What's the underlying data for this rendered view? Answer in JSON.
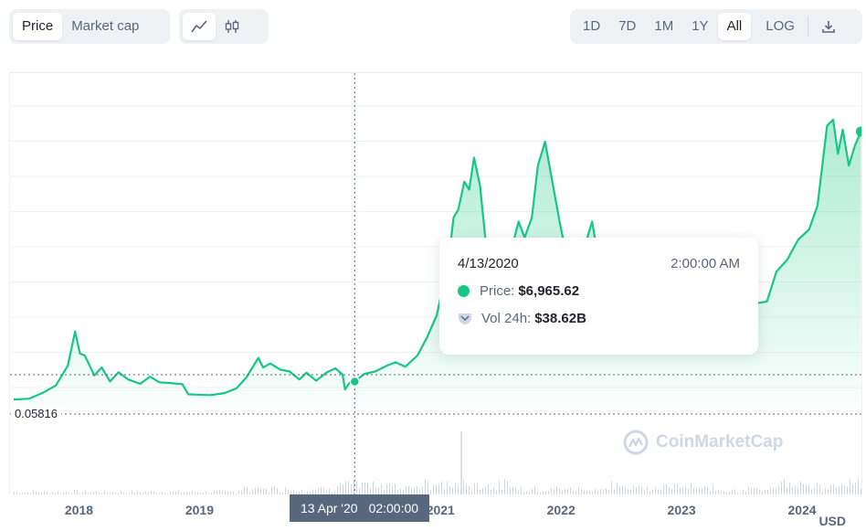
{
  "toolbar": {
    "tabs": [
      {
        "label": "Price",
        "active": true
      },
      {
        "label": "Market cap",
        "active": false
      }
    ],
    "chart_types": [
      {
        "icon": "line-chart-icon",
        "active": true
      },
      {
        "icon": "candlestick-icon",
        "active": false
      }
    ],
    "ranges": [
      {
        "label": "1D",
        "active": false
      },
      {
        "label": "7D",
        "active": false
      },
      {
        "label": "1M",
        "active": false
      },
      {
        "label": "1Y",
        "active": false
      },
      {
        "label": "All",
        "active": true
      }
    ],
    "log_label": "LOG",
    "download_icon": "download-icon"
  },
  "tooltip": {
    "date": "4/13/2020",
    "time": "2:00:00 AM",
    "price_label": "Price:",
    "price_value": "$6,965.62",
    "volume_label": "Vol 24h:",
    "volume_value": "$38.62B"
  },
  "hover_axis": {
    "date": "13 Apr '20",
    "time": "02:00:00"
  },
  "min_label": "0.05816",
  "currency": "USD",
  "watermark": "CoinMarketCap",
  "colors": {
    "line": "#16c784",
    "tooltip_bar": "#58667e"
  },
  "chart_data": {
    "type": "area",
    "title": "",
    "xlabel": "",
    "ylabel": "",
    "x_ticks": [
      "2018",
      "2019",
      "2020",
      "2021",
      "2022",
      "2023",
      "2024"
    ],
    "series": [
      {
        "values": [
          [
            2017.45,
            2500
          ],
          [
            2017.58,
            2700
          ],
          [
            2017.7,
            4300
          ],
          [
            2017.8,
            6000
          ],
          [
            2017.9,
            11000
          ],
          [
            2017.96,
            19500
          ],
          [
            2018.0,
            14000
          ],
          [
            2018.04,
            13500
          ],
          [
            2018.12,
            8500
          ],
          [
            2018.18,
            10500
          ],
          [
            2018.25,
            7000
          ],
          [
            2018.32,
            9300
          ],
          [
            2018.4,
            7500
          ],
          [
            2018.5,
            6400
          ],
          [
            2018.58,
            8200
          ],
          [
            2018.66,
            6800
          ],
          [
            2018.75,
            6600
          ],
          [
            2018.85,
            6300
          ],
          [
            2018.9,
            3800
          ],
          [
            2018.97,
            3700
          ],
          [
            2019.08,
            3600
          ],
          [
            2019.2,
            4100
          ],
          [
            2019.3,
            5300
          ],
          [
            2019.38,
            8000
          ],
          [
            2019.48,
            12900
          ],
          [
            2019.52,
            10500
          ],
          [
            2019.58,
            11500
          ],
          [
            2019.66,
            10000
          ],
          [
            2019.74,
            9500
          ],
          [
            2019.82,
            7500
          ],
          [
            2019.88,
            9200
          ],
          [
            2019.96,
            7200
          ],
          [
            2020.05,
            9300
          ],
          [
            2020.12,
            10300
          ],
          [
            2020.18,
            8700
          ],
          [
            2020.2,
            5000
          ],
          [
            2020.24,
            6800
          ],
          [
            2020.28,
            6965.62
          ],
          [
            2020.36,
            8900
          ],
          [
            2020.45,
            9500
          ],
          [
            2020.55,
            11000
          ],
          [
            2020.62,
            11800
          ],
          [
            2020.7,
            10700
          ],
          [
            2020.8,
            13500
          ],
          [
            2020.88,
            18000
          ],
          [
            2020.96,
            23500
          ],
          [
            2021.0,
            29000
          ],
          [
            2021.05,
            35000
          ],
          [
            2021.1,
            48000
          ],
          [
            2021.14,
            50000
          ],
          [
            2021.19,
            57000
          ],
          [
            2021.23,
            55000
          ],
          [
            2021.27,
            63000
          ],
          [
            2021.32,
            56000
          ],
          [
            2021.38,
            38000
          ],
          [
            2021.45,
            35000
          ],
          [
            2021.52,
            31000
          ],
          [
            2021.58,
            40000
          ],
          [
            2021.64,
            47000
          ],
          [
            2021.69,
            43000
          ],
          [
            2021.75,
            48000
          ],
          [
            2021.8,
            61000
          ],
          [
            2021.86,
            67000
          ],
          [
            2021.92,
            57000
          ],
          [
            2021.98,
            47000
          ],
          [
            2022.04,
            38000
          ],
          [
            2022.1,
            42000
          ],
          [
            2022.17,
            39000
          ],
          [
            2022.25,
            47000
          ],
          [
            2022.3,
            38000
          ],
          [
            2022.38,
            30000
          ],
          [
            2022.45,
            20000
          ],
          [
            2022.55,
            23000
          ],
          [
            2022.65,
            20000
          ],
          [
            2022.75,
            19500
          ],
          [
            2022.85,
            16500
          ],
          [
            2022.98,
            16600
          ],
          [
            2023.05,
            23000
          ],
          [
            2023.15,
            24000
          ],
          [
            2023.22,
            28500
          ],
          [
            2023.32,
            27500
          ],
          [
            2023.4,
            30200
          ],
          [
            2023.5,
            29200
          ],
          [
            2023.6,
            26500
          ],
          [
            2023.7,
            27000
          ],
          [
            2023.78,
            34500
          ],
          [
            2023.87,
            37500
          ],
          [
            2023.96,
            42500
          ],
          [
            2024.05,
            45000
          ],
          [
            2024.12,
            51000
          ],
          [
            2024.2,
            71000
          ],
          [
            2024.25,
            72500
          ],
          [
            2024.29,
            64000
          ],
          [
            2024.33,
            70000
          ],
          [
            2024.38,
            61000
          ],
          [
            2024.43,
            66000
          ],
          [
            2024.48,
            69500
          ]
        ]
      }
    ],
    "hover_point": {
      "date": "4/13/2020",
      "value": 6965.62
    },
    "min_value": 0.05816,
    "grid": true,
    "legend": "none"
  }
}
